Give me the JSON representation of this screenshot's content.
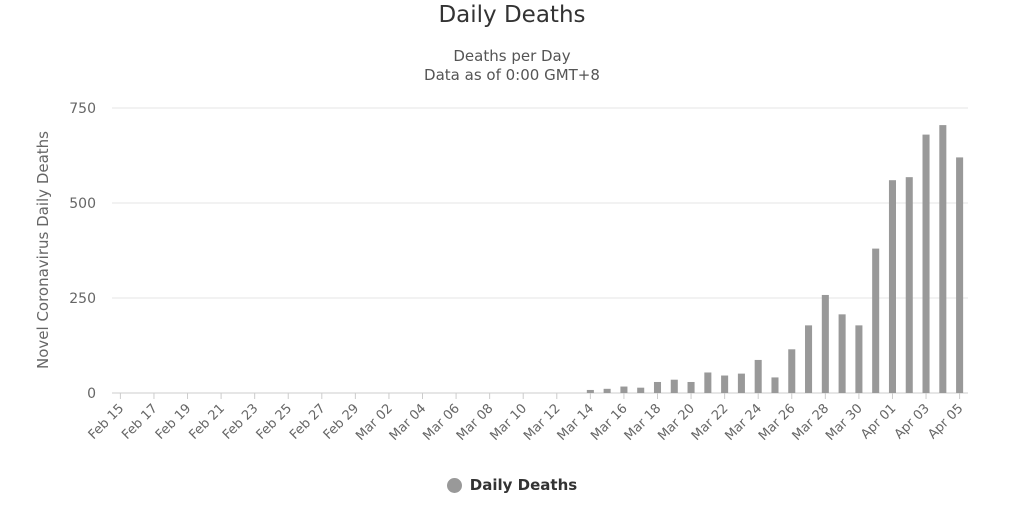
{
  "chart_data": {
    "type": "bar",
    "title": "Daily Deaths",
    "subtitle": [
      "Deaths per Day",
      "Data as of 0:00 GMT+8"
    ],
    "xlabel": "",
    "ylabel": "Novel Coronavirus Daily Deaths",
    "ylim": [
      0,
      750
    ],
    "yticks": [
      0,
      250,
      500,
      750
    ],
    "grid": true,
    "legend_position": "bottom-center",
    "categories": [
      "Feb 15",
      "Feb 16",
      "Feb 17",
      "Feb 18",
      "Feb 19",
      "Feb 20",
      "Feb 21",
      "Feb 22",
      "Feb 23",
      "Feb 24",
      "Feb 25",
      "Feb 26",
      "Feb 27",
      "Feb 28",
      "Feb 29",
      "Mar 01",
      "Mar 02",
      "Mar 03",
      "Mar 04",
      "Mar 05",
      "Mar 06",
      "Mar 07",
      "Mar 08",
      "Mar 09",
      "Mar 10",
      "Mar 11",
      "Mar 12",
      "Mar 13",
      "Mar 14",
      "Mar 15",
      "Mar 16",
      "Mar 17",
      "Mar 18",
      "Mar 19",
      "Mar 20",
      "Mar 21",
      "Mar 22",
      "Mar 23",
      "Mar 24",
      "Mar 25",
      "Mar 26",
      "Mar 27",
      "Mar 28",
      "Mar 29",
      "Mar 30",
      "Mar 31",
      "Apr 01",
      "Apr 02",
      "Apr 03",
      "Apr 04",
      "Apr 05"
    ],
    "xtick_labels": [
      "Feb 15",
      "Feb 17",
      "Feb 19",
      "Feb 21",
      "Feb 23",
      "Feb 25",
      "Feb 27",
      "Feb 29",
      "Mar 02",
      "Mar 04",
      "Mar 06",
      "Mar 08",
      "Mar 10",
      "Mar 12",
      "Mar 14",
      "Mar 16",
      "Mar 18",
      "Mar 20",
      "Mar 22",
      "Mar 24",
      "Mar 26",
      "Mar 28",
      "Mar 30",
      "Apr 01",
      "Apr 03",
      "Apr 05"
    ],
    "series": [
      {
        "name": "Daily Deaths",
        "color": "#999999",
        "values": [
          0,
          0,
          0,
          0,
          0,
          0,
          0,
          0,
          0,
          0,
          0,
          0,
          0,
          0,
          0,
          0,
          0,
          0,
          0,
          0,
          0,
          0,
          0,
          0,
          0,
          0,
          0,
          0,
          8,
          11,
          17,
          14,
          29,
          35,
          29,
          54,
          46,
          51,
          87,
          41,
          115,
          178,
          258,
          207,
          178,
          380,
          560,
          568,
          680,
          705,
          620
        ]
      }
    ]
  }
}
